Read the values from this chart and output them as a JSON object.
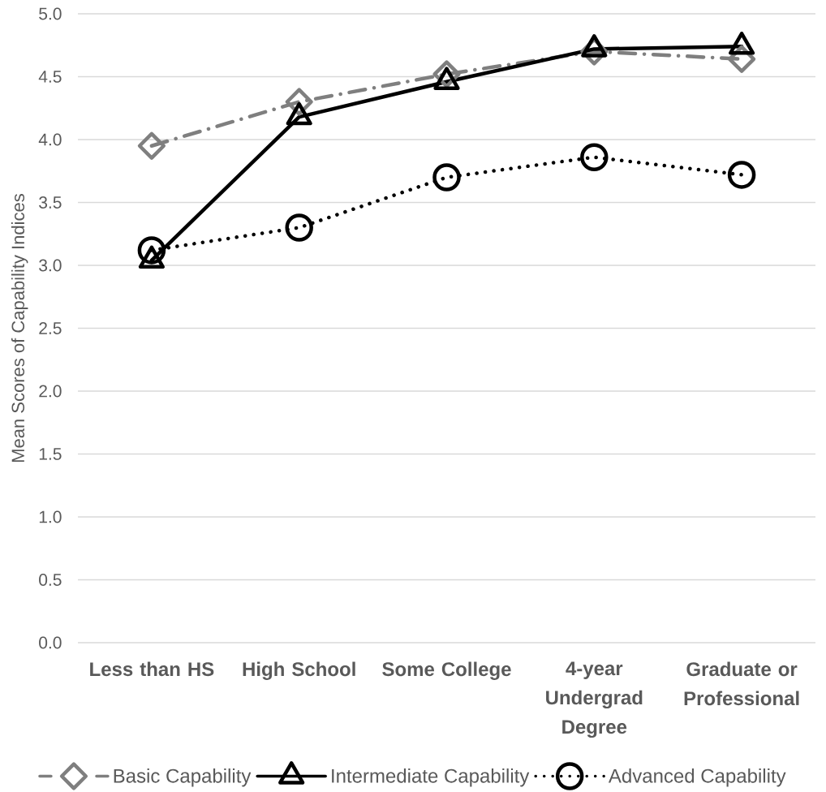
{
  "chart_data": {
    "type": "line",
    "ylabel": "Mean Scores of Capability Indices",
    "categories": [
      "Less than HS",
      "High School",
      "Some College",
      "4-year Undergrad Degree",
      "Graduate or Professional"
    ],
    "ylim": [
      0,
      5
    ],
    "yticks": [
      {
        "value": 0,
        "label": "0.0"
      },
      {
        "value": 0.5,
        "label": "0.5"
      },
      {
        "value": 1,
        "label": "1.0"
      },
      {
        "value": 1.5,
        "label": "1.5"
      },
      {
        "value": 2,
        "label": "2.0"
      },
      {
        "value": 2.5,
        "label": "2.5"
      },
      {
        "value": 3,
        "label": "3.0"
      },
      {
        "value": 3.5,
        "label": "3.5"
      },
      {
        "value": 4,
        "label": "4.0"
      },
      {
        "value": 4.5,
        "label": "4.5"
      },
      {
        "value": 5,
        "label": "5.0"
      }
    ],
    "grid": "y",
    "legend": "bottom",
    "series": [
      {
        "name": "Basic Capability",
        "color": "#7f7f7f",
        "marker": "diamond",
        "line_style": "dashed",
        "values": [
          3.95,
          4.3,
          4.52,
          4.7,
          4.64
        ]
      },
      {
        "name": "Intermediate Capability",
        "color": "#000000",
        "marker": "triangle",
        "line_style": "solid",
        "values": [
          3.04,
          4.18,
          4.46,
          4.72,
          4.74
        ]
      },
      {
        "name": "Advanced Capability",
        "color": "#000000",
        "marker": "circle",
        "line_style": "dotted",
        "values": [
          3.12,
          3.3,
          3.7,
          3.86,
          3.72
        ]
      }
    ]
  }
}
